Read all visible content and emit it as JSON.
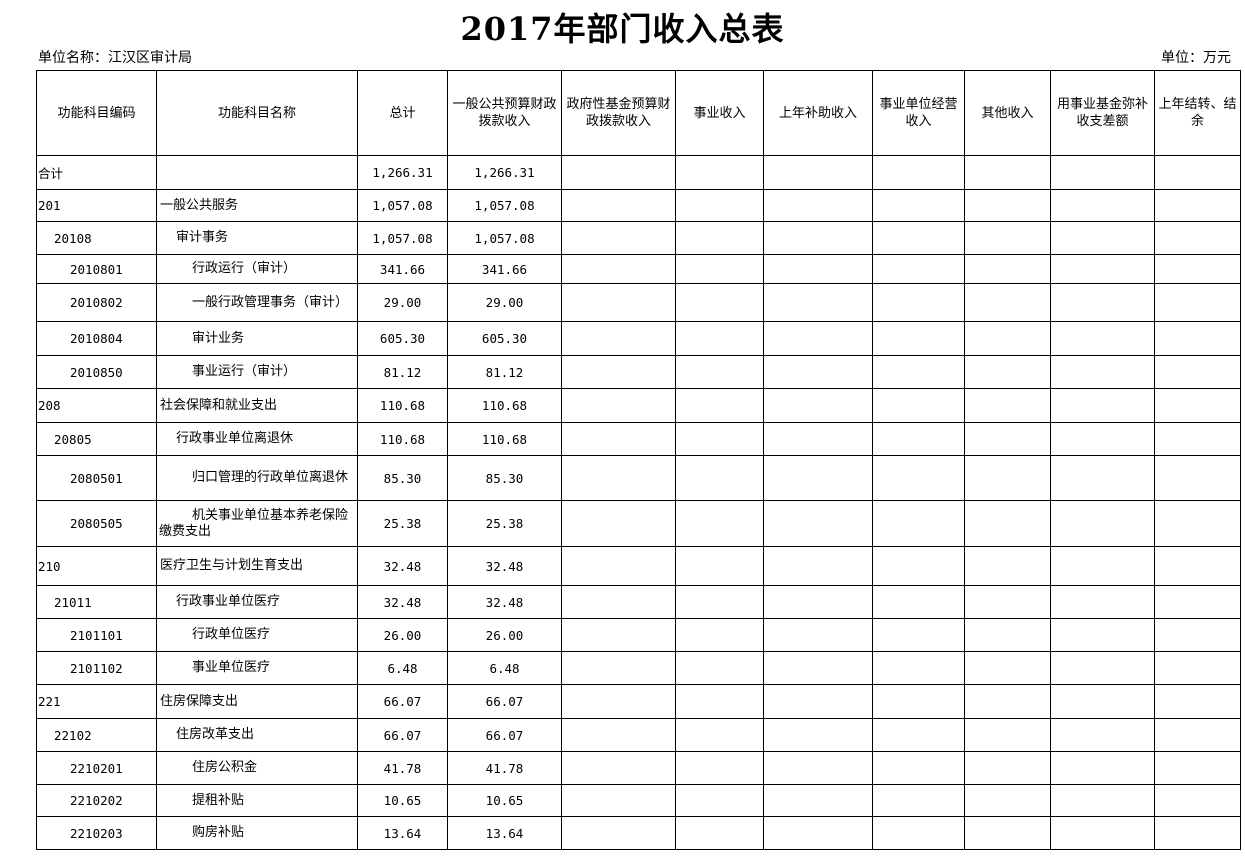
{
  "title": "2017年部门收入总表",
  "unit_name": "单位名称：江汉区审计局",
  "unit": "单位：万元",
  "columns": [
    "功能科目编码",
    "功能科目名称",
    "总计",
    "一般公共预算财政拨款收入",
    "政府性基金预算财政拨款收入",
    "事业收入",
    "上年补助收入",
    "事业单位经营收入",
    "其他收入",
    "用事业基金弥补收支差额",
    "上年结转、结余"
  ],
  "rows": [
    {
      "code": "合计",
      "name": "",
      "total": "1,266.31",
      "general": "1,266.31",
      "level": 0
    },
    {
      "code": "201",
      "name": "一般公共服务",
      "total": "1,057.08",
      "general": "1,057.08",
      "level": 0
    },
    {
      "code": "20108",
      "name": "审计事务",
      "total": "1,057.08",
      "general": "1,057.08",
      "level": 1
    },
    {
      "code": "2010801",
      "name": "行政运行（审计）",
      "total": "341.66",
      "general": "341.66",
      "level": 2
    },
    {
      "code": "2010802",
      "name": "一般行政管理事务（审计）",
      "total": "29.00",
      "general": "29.00",
      "level": 2
    },
    {
      "code": "2010804",
      "name": "审计业务",
      "total": "605.30",
      "general": "605.30",
      "level": 2
    },
    {
      "code": "2010850",
      "name": "事业运行（审计）",
      "total": "81.12",
      "general": "81.12",
      "level": 2
    },
    {
      "code": "208",
      "name": "社会保障和就业支出",
      "total": "110.68",
      "general": "110.68",
      "level": 0
    },
    {
      "code": "20805",
      "name": "行政事业单位离退休",
      "total": "110.68",
      "general": "110.68",
      "level": 1
    },
    {
      "code": "2080501",
      "name": "归口管理的行政单位离退休",
      "total": "85.30",
      "general": "85.30",
      "level": 2
    },
    {
      "code": "2080505",
      "name": "机关事业单位基本养老保险缴费支出",
      "total": "25.38",
      "general": "25.38",
      "level": 2
    },
    {
      "code": "210",
      "name": "医疗卫生与计划生育支出",
      "total": "32.48",
      "general": "32.48",
      "level": 0
    },
    {
      "code": "21011",
      "name": "行政事业单位医疗",
      "total": "32.48",
      "general": "32.48",
      "level": 1
    },
    {
      "code": "2101101",
      "name": "行政单位医疗",
      "total": "26.00",
      "general": "26.00",
      "level": 2
    },
    {
      "code": "2101102",
      "name": "事业单位医疗",
      "total": "6.48",
      "general": "6.48",
      "level": 2
    },
    {
      "code": "221",
      "name": "住房保障支出",
      "total": "66.07",
      "general": "66.07",
      "level": 0
    },
    {
      "code": "22102",
      "name": "住房改革支出",
      "total": "66.07",
      "general": "66.07",
      "level": 1
    },
    {
      "code": "2210201",
      "name": "住房公积金",
      "total": "41.78",
      "general": "41.78",
      "level": 2
    },
    {
      "code": "2210202",
      "name": "提租补贴",
      "total": "10.65",
      "general": "10.65",
      "level": 2
    },
    {
      "code": "2210203",
      "name": "购房补贴",
      "total": "13.64",
      "general": "13.64",
      "level": 2
    }
  ]
}
